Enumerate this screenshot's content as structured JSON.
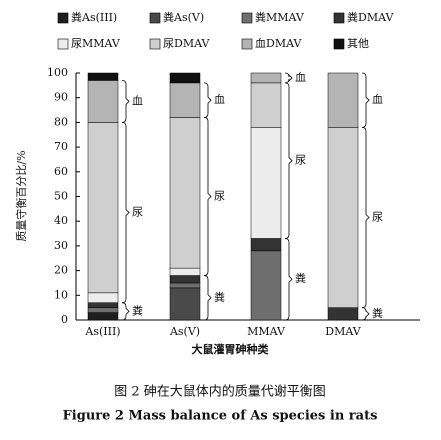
{
  "chart_data": {
    "type": "stacked_bar",
    "title": "图 2  砷在大鼠体内的质量代谢平衡图",
    "subtitle": "Figure 2   Mass balance of As species in rats",
    "x_label": "大鼠灌胃砷种类",
    "y_label": "质量守衡百分比/%",
    "categories": [
      "As(III)",
      "As(V)",
      "MMAV",
      "DMAV"
    ],
    "ylim": [
      0,
      100
    ],
    "yticks": [
      0,
      10,
      20,
      30,
      40,
      50,
      60,
      70,
      80,
      90,
      100
    ],
    "series": [
      {
        "name": "粪As(III)",
        "color": "#1e1e1e",
        "values": [
          3,
          0,
          0,
          0
        ]
      },
      {
        "name": "粪As(V)",
        "color": "#4a4a4a",
        "values": [
          0,
          13,
          0,
          0
        ]
      },
      {
        "name": "粪MMAV",
        "color": "#6e6e6e",
        "values": [
          2,
          2,
          28,
          0
        ]
      },
      {
        "name": "粪DMAV",
        "color": "#333333",
        "values": [
          2,
          3,
          5,
          5
        ]
      },
      {
        "name": "尿MMAV",
        "color": "#ececec",
        "values": [
          4,
          3,
          45,
          0
        ]
      },
      {
        "name": "尿DMAV",
        "color": "#cfcfcf",
        "values": [
          69,
          61,
          18,
          73
        ]
      },
      {
        "name": "血DMAV",
        "color": "#b4b4b4",
        "values": [
          17,
          14,
          4,
          22
        ]
      },
      {
        "name": "其他",
        "color": "#101010",
        "values": [
          3,
          4,
          0,
          0
        ]
      }
    ],
    "annotations": [
      [
        {
          "text": "粪",
          "range": [
            0,
            7
          ]
        },
        {
          "text": "尿",
          "range": [
            7,
            80
          ]
        },
        {
          "text": "血",
          "range": [
            80,
            97
          ]
        }
      ],
      [
        {
          "text": "粪",
          "range": [
            0,
            18
          ]
        },
        {
          "text": "尿",
          "range": [
            18,
            82
          ]
        },
        {
          "text": "血",
          "range": [
            82,
            96
          ]
        }
      ],
      [
        {
          "text": "粪",
          "range": [
            0,
            33
          ]
        },
        {
          "text": "尿",
          "range": [
            33,
            96
          ]
        },
        {
          "text": "血",
          "range": [
            96,
            100
          ]
        }
      ],
      [
        {
          "text": "粪",
          "range": [
            0,
            5
          ]
        },
        {
          "text": "尿",
          "range": [
            5,
            78
          ]
        },
        {
          "text": "血",
          "range": [
            78,
            100
          ]
        }
      ]
    ]
  }
}
